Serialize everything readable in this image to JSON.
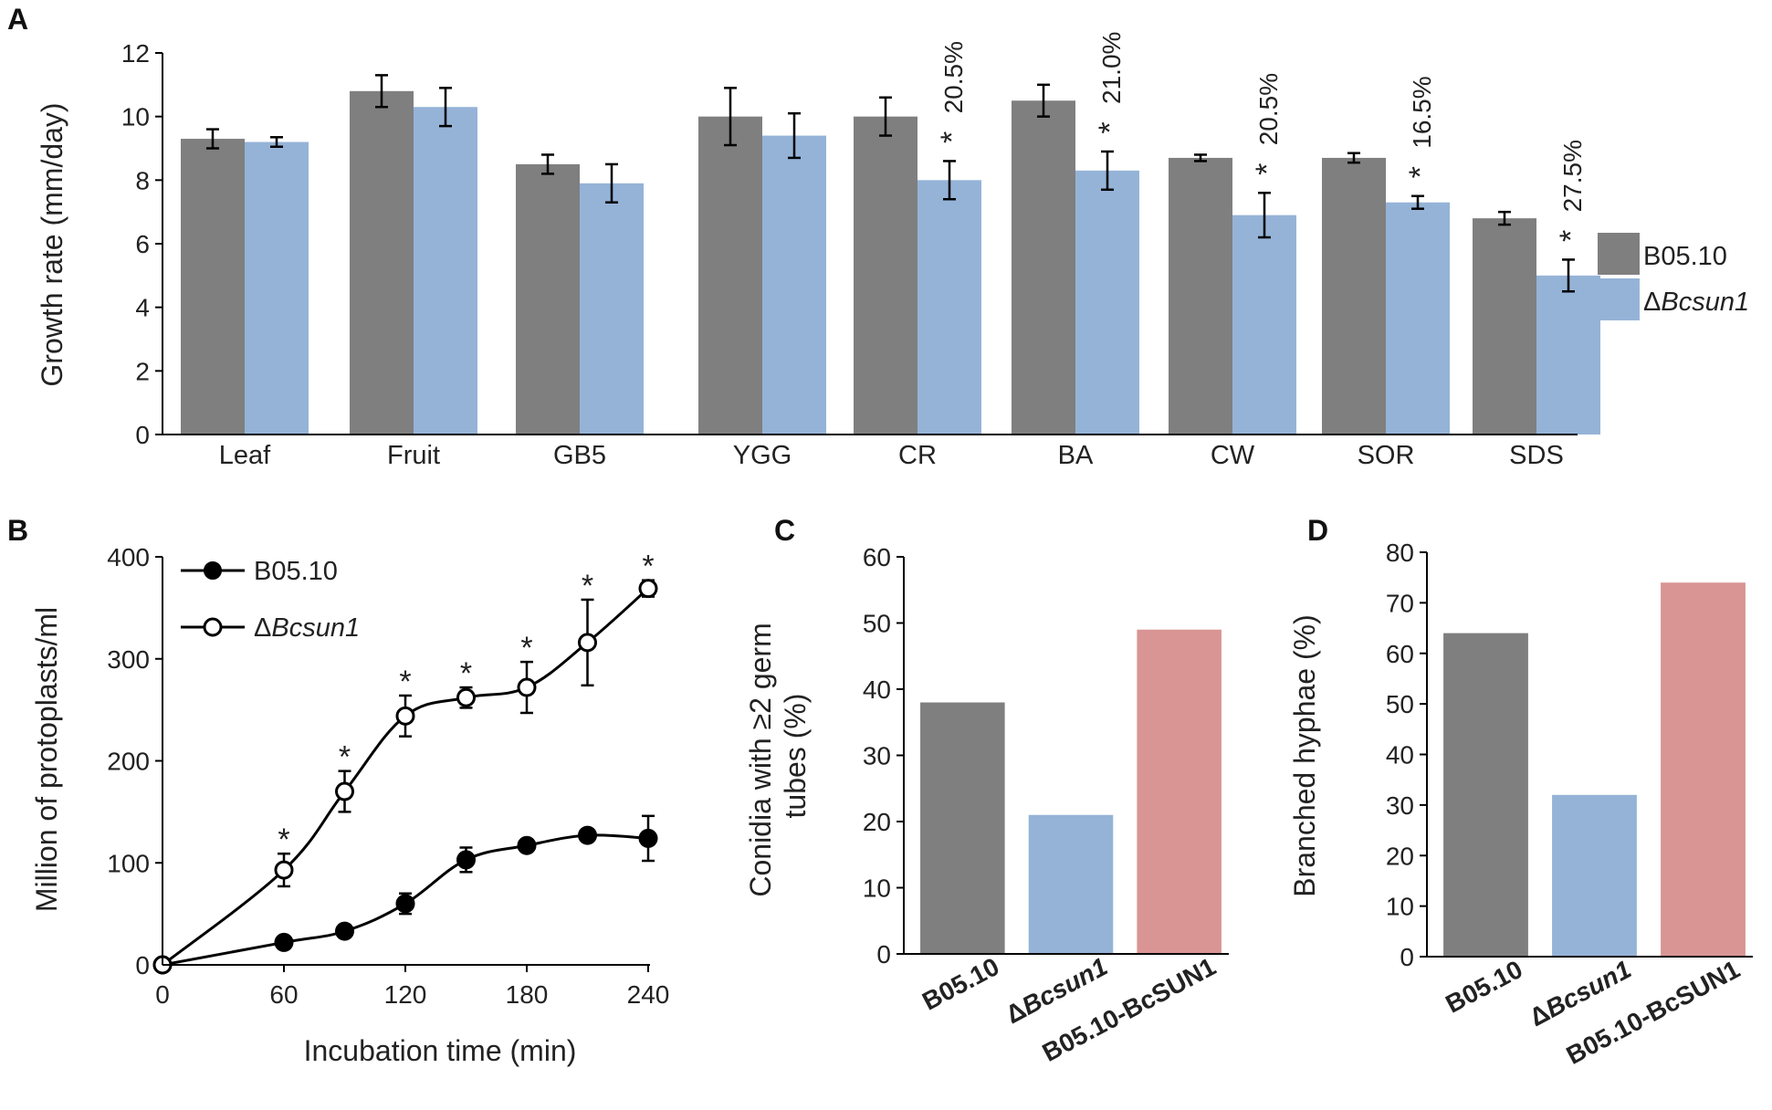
{
  "colors": {
    "b0510": "#7f7f7f",
    "mutant": "#95b3d7",
    "complement": "#d99594",
    "axis": "#000000"
  },
  "chart_data": [
    {
      "panel": "A",
      "type": "bar",
      "ylabel": "Growth rate (mm/day)",
      "ylim": [
        0,
        12
      ],
      "yticks": [
        "0",
        "2",
        "4",
        "6",
        "8",
        "10",
        "12"
      ],
      "categories": [
        "Leaf",
        "Fruit",
        "GB5",
        "YGG",
        "CR",
        "BA",
        "CW",
        "SOR",
        "SDS"
      ],
      "series": [
        {
          "name": "B05.10",
          "values": [
            9.3,
            10.8,
            8.5,
            10.0,
            10.0,
            10.5,
            8.7,
            8.7,
            6.8
          ],
          "errors": [
            0.3,
            0.5,
            0.3,
            0.9,
            0.6,
            0.5,
            0.1,
            0.15,
            0.2
          ]
        },
        {
          "name_prefix": "Δ",
          "name_italic": "Bcsun1",
          "values": [
            9.2,
            10.3,
            7.9,
            9.4,
            8.0,
            8.3,
            6.9,
            7.3,
            5.0
          ],
          "errors": [
            0.15,
            0.6,
            0.6,
            0.7,
            0.6,
            0.6,
            0.7,
            0.2,
            0.5
          ]
        }
      ],
      "stars": [
        null,
        null,
        null,
        null,
        "*",
        "*",
        "*",
        "*",
        "*"
      ],
      "percent_labels": [
        null,
        null,
        null,
        null,
        "20.5%",
        "21.0%",
        "20.5%",
        "16.5%",
        "27.5%"
      ]
    },
    {
      "panel": "B",
      "type": "line",
      "xlabel": "Incubation time (min)",
      "ylabel": "Million of protoplasts/ml",
      "xlim": [
        0,
        240
      ],
      "ylim": [
        0,
        400
      ],
      "xticks": [
        "0",
        "60",
        "120",
        "180",
        "240"
      ],
      "yticks": [
        "0",
        "100",
        "200",
        "300",
        "400"
      ],
      "x": [
        0,
        60,
        90,
        120,
        150,
        180,
        210,
        240
      ],
      "series": [
        {
          "name": "B05.10",
          "marker": "filled",
          "values": [
            0,
            22,
            33,
            60,
            103,
            117,
            127,
            124
          ],
          "errors": [
            0,
            6,
            6,
            10,
            12,
            6,
            5,
            22
          ]
        },
        {
          "name_prefix": "Δ",
          "name_italic": "Bcsun1",
          "marker": "open",
          "values": [
            0,
            93,
            170,
            244,
            262,
            272,
            316,
            369
          ],
          "errors": [
            0,
            16,
            20,
            20,
            10,
            25,
            42,
            8
          ]
        }
      ],
      "stars": [
        null,
        "*",
        "*",
        "*",
        "*",
        "*",
        "*",
        "*"
      ]
    },
    {
      "panel": "C",
      "type": "bar",
      "ylabel_line1": "Conidia with ≥2 germ",
      "ylabel_line2": "tubes (%)",
      "ylim": [
        0,
        60
      ],
      "yticks": [
        "0",
        "10",
        "20",
        "30",
        "40",
        "50",
        "60"
      ],
      "categories": [
        "B05.10",
        "ΔBcsun1",
        "B05.10-BcSUN1"
      ],
      "values": [
        38,
        21,
        49
      ]
    },
    {
      "panel": "D",
      "type": "bar",
      "ylabel": "Branched hyphae (%)",
      "ylim": [
        0,
        80
      ],
      "yticks": [
        "0",
        "10",
        "20",
        "30",
        "40",
        "50",
        "60",
        "70",
        "80"
      ],
      "categories": [
        "B05.10",
        "ΔBcsun1",
        "B05.10-BcSUN1"
      ],
      "values": [
        64,
        32,
        74
      ]
    }
  ]
}
